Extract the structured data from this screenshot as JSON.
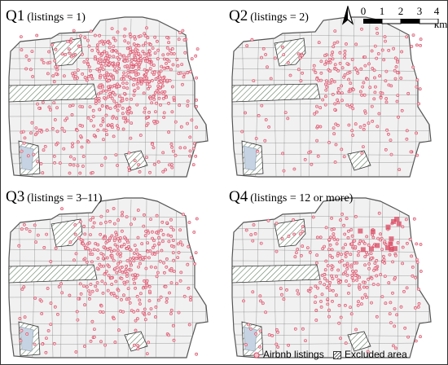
{
  "panels": [
    {
      "code": "Q1",
      "subtitle": "(listings = 1)",
      "density": 0.95
    },
    {
      "code": "Q2",
      "subtitle": "(listings = 2)",
      "density": 0.35
    },
    {
      "code": "Q3",
      "subtitle": "(listings = 3–11)",
      "density": 0.6
    },
    {
      "code": "Q4",
      "subtitle": "(listings = 12 or more)",
      "density": 0.45
    }
  ],
  "scalebar": {
    "ticks": [
      "0",
      "1",
      "2",
      "3",
      "4 km"
    ]
  },
  "north_arrow": {
    "label": "north-arrow-icon"
  },
  "legend": {
    "listings_label": "Airbnb listings",
    "excluded_label": "Excluded area"
  },
  "colors": {
    "listing": "#d9455f",
    "listing_fill": "#f2c7cf",
    "land": "#f1f1f1",
    "park_hatch": "#5f7d5f",
    "water": "#c6d3e2",
    "boundary": "#7a7a7a"
  }
}
